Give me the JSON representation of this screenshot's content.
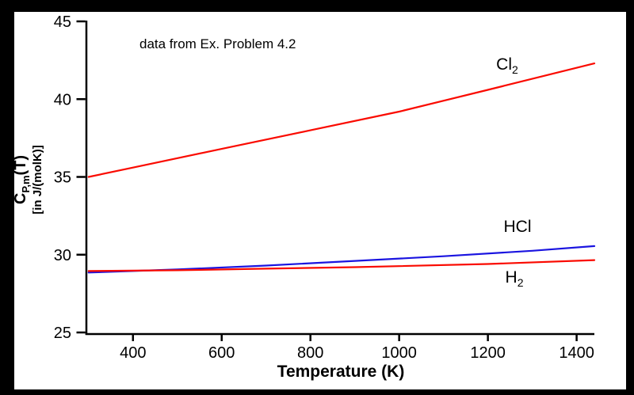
{
  "frame": {
    "border_color": "#000000",
    "panel_color": "#ffffff"
  },
  "annotation": {
    "text": "data from Ex. Problem 4.2"
  },
  "chart_data": {
    "type": "line",
    "title": "",
    "xlabel": "Temperature (K)",
    "ylabel_line1": {
      "c": "C",
      "sub": "P,m",
      "rest": "(T)"
    },
    "ylabel_line2": "[in J/(molK)]",
    "xlim": [
      300,
      1440
    ],
    "ylim": [
      25,
      45
    ],
    "x_ticks": [
      400,
      600,
      800,
      1000,
      1200,
      1400
    ],
    "y_ticks": [
      45,
      40,
      35,
      30,
      25
    ],
    "grid": false,
    "legend_position": "inline-labels",
    "axis_color": "#000000",
    "series": [
      {
        "name": "Cl2",
        "label_main": "Cl",
        "label_sub": "2",
        "color": "#fa0a00",
        "points": [
          [
            300,
            35.0
          ],
          [
            400,
            35.6
          ],
          [
            600,
            36.8
          ],
          [
            800,
            38.0
          ],
          [
            1000,
            39.2
          ],
          [
            1200,
            40.6
          ],
          [
            1440,
            42.3
          ]
        ]
      },
      {
        "name": "HCl",
        "label_main": "HCl",
        "label_sub": "",
        "color": "#1a14e0",
        "points": [
          [
            300,
            28.85
          ],
          [
            500,
            29.05
          ],
          [
            700,
            29.3
          ],
          [
            900,
            29.6
          ],
          [
            1100,
            29.9
          ],
          [
            1300,
            30.25
          ],
          [
            1440,
            30.55
          ]
        ]
      },
      {
        "name": "H2",
        "label_main": "H",
        "label_sub": "2",
        "color": "#fa0a00",
        "points": [
          [
            300,
            28.95
          ],
          [
            500,
            29.0
          ],
          [
            700,
            29.1
          ],
          [
            900,
            29.2
          ],
          [
            1200,
            29.4
          ],
          [
            1440,
            29.65
          ]
        ]
      }
    ]
  }
}
